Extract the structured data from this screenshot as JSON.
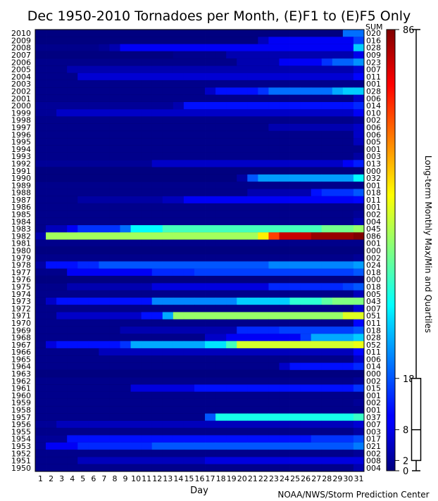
{
  "chart_data": {
    "type": "heatmap",
    "title": "Dec 1950-2010 Tornadoes per Month, (E)F1 to (E)F5 Only",
    "xlabel": "Day",
    "sum_header": "SUM",
    "credit": "NOAA/NWS/Storm Prediction Center",
    "colorbar_label": "Long-term Monthly Max/Min and Quartiles",
    "colorbar_ticks": [
      "86",
      "18",
      "8",
      "2",
      "0"
    ],
    "colorbar_tick_values": [
      86,
      18,
      8,
      2,
      0
    ],
    "quartiles": {
      "min": 0,
      "q1": 2,
      "median": 8,
      "q3": 18,
      "max": 86
    },
    "vmin": 0,
    "vmax": 86,
    "x_days": [
      "1",
      "2",
      "3",
      "4",
      "5",
      "6",
      "7",
      "8",
      "9",
      "10",
      "11",
      "12",
      "13",
      "14",
      "15",
      "16",
      "17",
      "18",
      "19",
      "20",
      "21",
      "22",
      "23",
      "24",
      "25",
      "26",
      "27",
      "28",
      "29",
      "30",
      "31"
    ],
    "rows": [
      {
        "year": "2010",
        "sum": "020",
        "cum": [
          [
            1,
            0
          ],
          [
            29,
            0
          ],
          [
            30,
            20
          ]
        ]
      },
      {
        "year": "2009",
        "sum": "016",
        "cum": [
          [
            1,
            0
          ],
          [
            22,
            5
          ],
          [
            23,
            10
          ],
          [
            31,
            16
          ]
        ]
      },
      {
        "year": "2008",
        "sum": "028",
        "cum": [
          [
            1,
            1
          ],
          [
            7,
            2
          ],
          [
            8,
            4
          ],
          [
            9,
            10
          ],
          [
            31,
            28
          ]
        ]
      },
      {
        "year": "2007",
        "sum": "009",
        "cum": [
          [
            1,
            0
          ],
          [
            14,
            1
          ],
          [
            19,
            4
          ],
          [
            31,
            9
          ]
        ]
      },
      {
        "year": "2006",
        "sum": "023",
        "cum": [
          [
            1,
            1
          ],
          [
            20,
            4
          ],
          [
            24,
            10
          ],
          [
            28,
            15
          ],
          [
            29,
            19
          ],
          [
            31,
            23
          ]
        ]
      },
      {
        "year": "2005",
        "sum": "007",
        "cum": [
          [
            1,
            1
          ],
          [
            4,
            4
          ],
          [
            31,
            7
          ]
        ]
      },
      {
        "year": "2004",
        "sum": "011",
        "cum": [
          [
            1,
            1
          ],
          [
            5,
            7
          ],
          [
            31,
            11
          ]
        ]
      },
      {
        "year": "2003",
        "sum": "001",
        "cum": [
          [
            1,
            1
          ],
          [
            31,
            1
          ]
        ]
      },
      {
        "year": "2002",
        "sum": "028",
        "cum": [
          [
            1,
            1
          ],
          [
            17,
            6
          ],
          [
            18,
            12
          ],
          [
            22,
            15
          ],
          [
            23,
            20
          ],
          [
            29,
            25
          ],
          [
            30,
            28
          ]
        ]
      },
      {
        "year": "2001",
        "sum": "006",
        "cum": [
          [
            1,
            1
          ],
          [
            31,
            6
          ]
        ]
      },
      {
        "year": "2000",
        "sum": "014",
        "cum": [
          [
            1,
            2
          ],
          [
            14,
            4
          ],
          [
            15,
            12
          ],
          [
            31,
            14
          ]
        ]
      },
      {
        "year": "1999",
        "sum": "010",
        "cum": [
          [
            1,
            2
          ],
          [
            3,
            6
          ],
          [
            31,
            10
          ]
        ]
      },
      {
        "year": "1998",
        "sum": "002",
        "cum": [
          [
            1,
            1
          ],
          [
            31,
            2
          ]
        ]
      },
      {
        "year": "1997",
        "sum": "006",
        "cum": [
          [
            1,
            1
          ],
          [
            23,
            4
          ],
          [
            31,
            6
          ]
        ]
      },
      {
        "year": "1996",
        "sum": "006",
        "cum": [
          [
            1,
            1
          ],
          [
            31,
            6
          ]
        ]
      },
      {
        "year": "1995",
        "sum": "005",
        "cum": [
          [
            1,
            1
          ],
          [
            31,
            5
          ]
        ]
      },
      {
        "year": "1994",
        "sum": "001",
        "cum": [
          [
            1,
            1
          ],
          [
            31,
            1
          ]
        ]
      },
      {
        "year": "1993",
        "sum": "003",
        "cum": [
          [
            1,
            1
          ],
          [
            31,
            3
          ]
        ]
      },
      {
        "year": "1992",
        "sum": "013",
        "cum": [
          [
            1,
            2
          ],
          [
            12,
            6
          ],
          [
            30,
            10
          ],
          [
            31,
            13
          ]
        ]
      },
      {
        "year": "1991",
        "sum": "000",
        "cum": [
          [
            1,
            0
          ],
          [
            31,
            0
          ]
        ]
      },
      {
        "year": "1990",
        "sum": "032",
        "cum": [
          [
            1,
            0
          ],
          [
            20,
            3
          ],
          [
            21,
            18
          ],
          [
            22,
            24
          ],
          [
            31,
            32
          ]
        ]
      },
      {
        "year": "1989",
        "sum": "001",
        "cum": [
          [
            1,
            1
          ],
          [
            31,
            1
          ]
        ]
      },
      {
        "year": "1988",
        "sum": "018",
        "cum": [
          [
            1,
            1
          ],
          [
            21,
            4
          ],
          [
            27,
            12
          ],
          [
            28,
            15
          ],
          [
            31,
            18
          ]
        ]
      },
      {
        "year": "1987",
        "sum": "011",
        "cum": [
          [
            1,
            1
          ],
          [
            5,
            3
          ],
          [
            13,
            5
          ],
          [
            15,
            10
          ],
          [
            31,
            11
          ]
        ]
      },
      {
        "year": "1986",
        "sum": "001",
        "cum": [
          [
            1,
            1
          ],
          [
            31,
            1
          ]
        ]
      },
      {
        "year": "1985",
        "sum": "002",
        "cum": [
          [
            1,
            1
          ],
          [
            31,
            2
          ]
        ]
      },
      {
        "year": "1984",
        "sum": "004",
        "cum": [
          [
            1,
            1
          ],
          [
            31,
            4
          ]
        ]
      },
      {
        "year": "1983",
        "sum": "045",
        "cum": [
          [
            1,
            1
          ],
          [
            2,
            5
          ],
          [
            4,
            10
          ],
          [
            5,
            15
          ],
          [
            9,
            20
          ],
          [
            10,
            32
          ],
          [
            13,
            38
          ],
          [
            28,
            42
          ],
          [
            31,
            45
          ]
        ]
      },
      {
        "year": "1982",
        "sum": "086",
        "cum": [
          [
            1,
            4
          ],
          [
            2,
            46
          ],
          [
            22,
            55
          ],
          [
            23,
            70
          ],
          [
            24,
            80
          ],
          [
            27,
            84
          ],
          [
            31,
            86
          ]
        ]
      },
      {
        "year": "1981",
        "sum": "001",
        "cum": [
          [
            1,
            1
          ],
          [
            31,
            1
          ]
        ]
      },
      {
        "year": "1980",
        "sum": "000",
        "cum": [
          [
            1,
            0
          ],
          [
            31,
            0
          ]
        ]
      },
      {
        "year": "1979",
        "sum": "002",
        "cum": [
          [
            1,
            1
          ],
          [
            31,
            2
          ]
        ]
      },
      {
        "year": "1978",
        "sum": "024",
        "cum": [
          [
            1,
            3
          ],
          [
            2,
            12
          ],
          [
            5,
            14
          ],
          [
            7,
            18
          ],
          [
            23,
            22
          ],
          [
            31,
            24
          ]
        ]
      },
      {
        "year": "1977",
        "sum": "018",
        "cum": [
          [
            1,
            1
          ],
          [
            4,
            10
          ],
          [
            12,
            14
          ],
          [
            16,
            16
          ],
          [
            31,
            18
          ]
        ]
      },
      {
        "year": "1976",
        "sum": "000",
        "cum": [
          [
            1,
            0
          ],
          [
            31,
            0
          ]
        ]
      },
      {
        "year": "1975",
        "sum": "018",
        "cum": [
          [
            1,
            1
          ],
          [
            4,
            4
          ],
          [
            12,
            8
          ],
          [
            23,
            14
          ],
          [
            30,
            16
          ],
          [
            31,
            18
          ]
        ]
      },
      {
        "year": "1974",
        "sum": "005",
        "cum": [
          [
            1,
            1
          ],
          [
            31,
            5
          ]
        ]
      },
      {
        "year": "1973",
        "sum": "043",
        "cum": [
          [
            1,
            1
          ],
          [
            2,
            6
          ],
          [
            3,
            12
          ],
          [
            12,
            22
          ],
          [
            20,
            28
          ],
          [
            25,
            36
          ],
          [
            28,
            40
          ],
          [
            29,
            43
          ]
        ]
      },
      {
        "year": "1972",
        "sum": "007",
        "cum": [
          [
            1,
            1
          ],
          [
            31,
            7
          ]
        ]
      },
      {
        "year": "1971",
        "sum": "051",
        "cum": [
          [
            1,
            1
          ],
          [
            3,
            6
          ],
          [
            11,
            12
          ],
          [
            13,
            25
          ],
          [
            14,
            45
          ],
          [
            30,
            51
          ]
        ]
      },
      {
        "year": "1970",
        "sum": "011",
        "cum": [
          [
            1,
            1
          ],
          [
            31,
            11
          ]
        ]
      },
      {
        "year": "1969",
        "sum": "018",
        "cum": [
          [
            1,
            1
          ],
          [
            9,
            4
          ],
          [
            20,
            14
          ],
          [
            24,
            16
          ],
          [
            31,
            18
          ]
        ]
      },
      {
        "year": "1968",
        "sum": "028",
        "cum": [
          [
            1,
            1
          ],
          [
            17,
            6
          ],
          [
            19,
            10
          ],
          [
            26,
            16
          ],
          [
            27,
            25
          ],
          [
            31,
            28
          ]
        ]
      },
      {
        "year": "1967",
        "sum": "052",
        "cum": [
          [
            1,
            1
          ],
          [
            2,
            8
          ],
          [
            3,
            12
          ],
          [
            9,
            15
          ],
          [
            10,
            25
          ],
          [
            17,
            30
          ],
          [
            19,
            38
          ],
          [
            20,
            50
          ],
          [
            31,
            52
          ]
        ]
      },
      {
        "year": "1966",
        "sum": "011",
        "cum": [
          [
            1,
            1
          ],
          [
            7,
            5
          ],
          [
            31,
            11
          ]
        ]
      },
      {
        "year": "1965",
        "sum": "006",
        "cum": [
          [
            1,
            1
          ],
          [
            31,
            6
          ]
        ]
      },
      {
        "year": "1964",
        "sum": "014",
        "cum": [
          [
            1,
            1
          ],
          [
            24,
            6
          ],
          [
            25,
            12
          ],
          [
            31,
            14
          ]
        ]
      },
      {
        "year": "1963",
        "sum": "000",
        "cum": [
          [
            1,
            0
          ],
          [
            31,
            0
          ]
        ]
      },
      {
        "year": "1962",
        "sum": "002",
        "cum": [
          [
            1,
            1
          ],
          [
            31,
            2
          ]
        ]
      },
      {
        "year": "1961",
        "sum": "015",
        "cum": [
          [
            1,
            1
          ],
          [
            10,
            8
          ],
          [
            16,
            12
          ],
          [
            31,
            15
          ]
        ]
      },
      {
        "year": "1960",
        "sum": "001",
        "cum": [
          [
            1,
            1
          ],
          [
            31,
            1
          ]
        ]
      },
      {
        "year": "1959",
        "sum": "002",
        "cum": [
          [
            1,
            1
          ],
          [
            31,
            2
          ]
        ]
      },
      {
        "year": "1958",
        "sum": "001",
        "cum": [
          [
            1,
            1
          ],
          [
            31,
            1
          ]
        ]
      },
      {
        "year": "1957",
        "sum": "037",
        "cum": [
          [
            1,
            1
          ],
          [
            17,
            18
          ],
          [
            18,
            34
          ],
          [
            31,
            37
          ]
        ]
      },
      {
        "year": "1956",
        "sum": "007",
        "cum": [
          [
            1,
            2
          ],
          [
            3,
            5
          ],
          [
            31,
            7
          ]
        ]
      },
      {
        "year": "1955",
        "sum": "003",
        "cum": [
          [
            1,
            1
          ],
          [
            31,
            3
          ]
        ]
      },
      {
        "year": "1954",
        "sum": "017",
        "cum": [
          [
            1,
            2
          ],
          [
            4,
            12
          ],
          [
            27,
            15
          ],
          [
            31,
            17
          ]
        ]
      },
      {
        "year": "1953",
        "sum": "021",
        "cum": [
          [
            1,
            2
          ],
          [
            2,
            10
          ],
          [
            5,
            14
          ],
          [
            12,
            18
          ],
          [
            31,
            21
          ]
        ]
      },
      {
        "year": "1952",
        "sum": "002",
        "cum": [
          [
            1,
            1
          ],
          [
            31,
            2
          ]
        ]
      },
      {
        "year": "1951",
        "sum": "008",
        "cum": [
          [
            1,
            1
          ],
          [
            5,
            5
          ],
          [
            17,
            8
          ],
          [
            31,
            8
          ]
        ]
      },
      {
        "year": "1950",
        "sum": "004",
        "cum": [
          [
            1,
            1
          ],
          [
            31,
            4
          ]
        ]
      }
    ]
  }
}
